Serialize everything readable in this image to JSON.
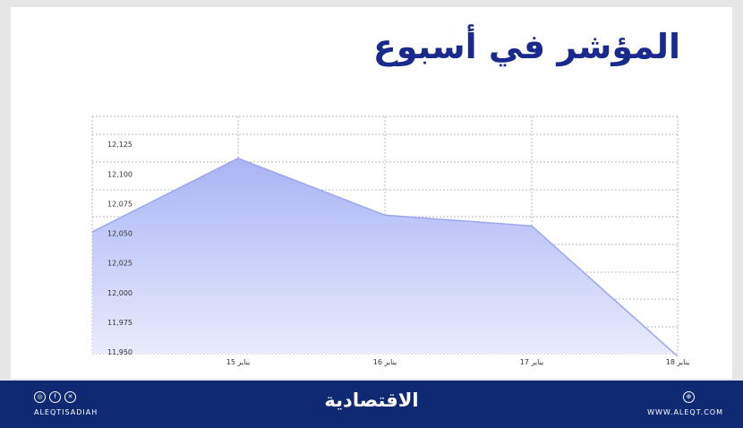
{
  "header": {
    "title": "المؤشر في أسبوع"
  },
  "chart_data": {
    "type": "area",
    "x": [
      "",
      "15 يناير",
      "16 يناير",
      "17 يناير",
      "18 يناير"
    ],
    "values": [
      12058,
      12120,
      12072,
      12063,
      11953
    ],
    "y_ticks": [
      12125,
      12100,
      12075,
      12050,
      12025,
      12000,
      11975,
      11950
    ],
    "y_tick_labels": [
      "12,125",
      "12,100",
      "12,075",
      "12,050",
      "12,025",
      "12,000",
      "11,975",
      "11,950"
    ],
    "ylim": [
      11950,
      12150
    ],
    "grid": true,
    "colors": {
      "fill_top": "#a9b4f5",
      "fill_bottom": "#e9ecfd",
      "line": "#9aa6ef",
      "grid": "#b8b8b8"
    }
  },
  "footer": {
    "social_handle": "ALEQTISADIAH",
    "brand": "الاقتصادية",
    "website": "WWW.ALEQT.COM",
    "social_icons": [
      "instagram-icon",
      "facebook-icon",
      "x-icon"
    ],
    "web_icon": "globe-icon"
  }
}
